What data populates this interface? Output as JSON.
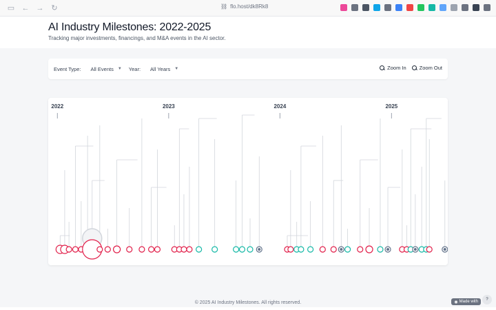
{
  "browser": {
    "url": "flo.host/dk8Rk8",
    "extensions": [
      {
        "icon": "pocket-icon",
        "color": "#ec4899"
      },
      {
        "icon": "tag-icon",
        "color": "#6b7280"
      },
      {
        "icon": "moon-icon",
        "color": "#4b5563"
      },
      {
        "icon": "globe-icon",
        "color": "#0ea5e9"
      },
      {
        "icon": "gear-icon",
        "color": "#6b7280"
      },
      {
        "icon": "shield-icon",
        "color": "#3b82f6"
      },
      {
        "icon": "bookmark-icon",
        "color": "#ef4444"
      },
      {
        "icon": "check-icon",
        "color": "#22c55e"
      },
      {
        "icon": "grid-icon",
        "color": "#14b8a6"
      },
      {
        "icon": "translate-icon",
        "color": "#60a5fa"
      },
      {
        "icon": "copy-icon",
        "color": "#9ca3af"
      },
      {
        "icon": "camera-icon",
        "color": "#6b7280"
      },
      {
        "icon": "printer-icon",
        "color": "#374151"
      },
      {
        "icon": "sidebar-icon",
        "color": "#6b7280"
      }
    ]
  },
  "header": {
    "title": "AI Industry Milestones: 2022-2025",
    "subtitle": "Tracking major investments, financings, and M&A events in the AI sector."
  },
  "filters": {
    "event_type_label": "Event Type:",
    "event_type_value": "All Events",
    "year_label": "Year:",
    "year_value": "All Years",
    "zoom_in": "Zoom In",
    "zoom_out": "Zoom Out"
  },
  "colors": {
    "type_a": "#e11d48",
    "type_b": "#14b8a6",
    "type_c": "#64748b"
  },
  "chart_data": {
    "type": "scatter",
    "title": "",
    "xlabel": "",
    "ylabel": "",
    "x_domain": [
      "2021-12-20",
      "2025-06-30"
    ],
    "year_ticks": [
      "2022",
      "2023",
      "2024",
      "2025"
    ],
    "events": [
      {
        "date": "2022-01-10",
        "kind": "a",
        "size": 6
      },
      {
        "date": "2022-01-25",
        "kind": "a",
        "size": 6
      },
      {
        "date": "2022-02-08",
        "kind": "a",
        "size": 4
      },
      {
        "date": "2022-03-01",
        "kind": "a",
        "size": 4
      },
      {
        "date": "2022-03-20",
        "kind": "a",
        "size": 4
      },
      {
        "date": "2022-04-10",
        "kind": "a",
        "size": 5
      },
      {
        "date": "2022-04-25",
        "kind": "a",
        "size": 14,
        "highlight": true
      },
      {
        "date": "2022-05-20",
        "kind": "a",
        "size": 4
      },
      {
        "date": "2022-06-15",
        "kind": "a",
        "size": 4
      },
      {
        "date": "2022-07-15",
        "kind": "a",
        "size": 5
      },
      {
        "date": "2022-08-25",
        "kind": "a",
        "size": 4
      },
      {
        "date": "2022-10-05",
        "kind": "a",
        "size": 4
      },
      {
        "date": "2022-11-05",
        "kind": "a",
        "size": 4
      },
      {
        "date": "2022-11-25",
        "kind": "a",
        "size": 4
      },
      {
        "date": "2023-01-20",
        "kind": "a",
        "size": 4
      },
      {
        "date": "2023-02-05",
        "kind": "a",
        "size": 4
      },
      {
        "date": "2023-02-20",
        "kind": "a",
        "size": 4
      },
      {
        "date": "2023-03-10",
        "kind": "a",
        "size": 4
      },
      {
        "date": "2023-04-10",
        "kind": "b",
        "size": 4
      },
      {
        "date": "2023-06-01",
        "kind": "b",
        "size": 4
      },
      {
        "date": "2023-08-10",
        "kind": "b",
        "size": 4
      },
      {
        "date": "2023-08-30",
        "kind": "b",
        "size": 4
      },
      {
        "date": "2023-09-25",
        "kind": "b",
        "size": 4
      },
      {
        "date": "2023-10-25",
        "kind": "c",
        "size": 4
      },
      {
        "date": "2024-01-25",
        "kind": "a",
        "size": 4
      },
      {
        "date": "2024-02-05",
        "kind": "a",
        "size": 4
      },
      {
        "date": "2024-02-25",
        "kind": "b",
        "size": 4
      },
      {
        "date": "2024-03-10",
        "kind": "b",
        "size": 4
      },
      {
        "date": "2024-04-10",
        "kind": "b",
        "size": 4
      },
      {
        "date": "2024-05-20",
        "kind": "a",
        "size": 4
      },
      {
        "date": "2024-06-25",
        "kind": "a",
        "size": 4
      },
      {
        "date": "2024-07-20",
        "kind": "c",
        "size": 4
      },
      {
        "date": "2024-08-10",
        "kind": "b",
        "size": 4
      },
      {
        "date": "2024-09-20",
        "kind": "a",
        "size": 4
      },
      {
        "date": "2024-10-20",
        "kind": "a",
        "size": 5
      },
      {
        "date": "2024-11-25",
        "kind": "b",
        "size": 4
      },
      {
        "date": "2024-12-20",
        "kind": "c",
        "size": 4
      },
      {
        "date": "2025-02-05",
        "kind": "a",
        "size": 4
      },
      {
        "date": "2025-02-20",
        "kind": "a",
        "size": 4
      },
      {
        "date": "2025-03-05",
        "kind": "b",
        "size": 4
      },
      {
        "date": "2025-03-20",
        "kind": "c",
        "size": 4
      },
      {
        "date": "2025-04-10",
        "kind": "b",
        "size": 4
      },
      {
        "date": "2025-04-25",
        "kind": "b",
        "size": 4
      },
      {
        "date": "2025-05-05",
        "kind": "a",
        "size": 4
      },
      {
        "date": "2025-06-25",
        "kind": "c",
        "size": 4
      }
    ]
  },
  "footer": {
    "copyright": "© 2025 AI Industry Milestones. All rights reserved.",
    "badge": "Made with"
  }
}
